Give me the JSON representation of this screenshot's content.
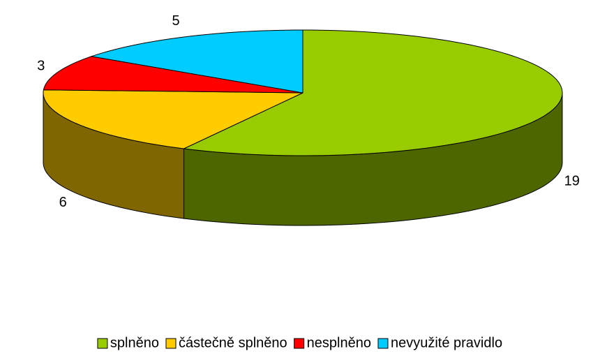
{
  "chart_data": {
    "type": "pie",
    "categories": [
      "splněno",
      "částečně splněno",
      "nesplněno",
      "nevyužité pravidlo"
    ],
    "values": [
      19,
      6,
      3,
      5
    ],
    "colors": [
      "#99cc00",
      "#ffcc00",
      "#ff0000",
      "#00ccff"
    ],
    "legend": "bottom"
  }
}
